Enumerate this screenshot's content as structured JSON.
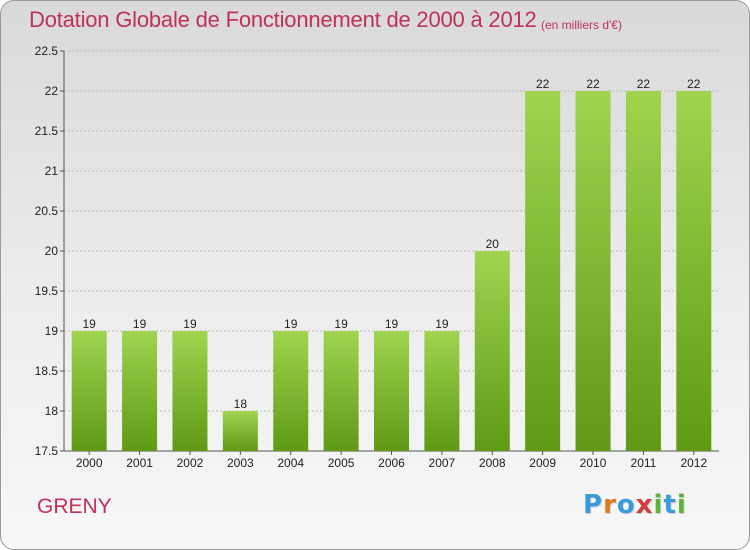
{
  "header": {
    "title": "Dotation Globale de Fonctionnement de 2000 à 2012",
    "subtitle": "(en milliers d'€)"
  },
  "footer": {
    "commune": "GRENY",
    "logo": "Proxiti",
    "logo_colors": [
      "#3a9ad9",
      "#e07a1f",
      "#3a9ad9",
      "#d63a3a",
      "#5bb33a",
      "#3a9ad9",
      "#5bb33a"
    ]
  },
  "colors": {
    "title": "#c0305a",
    "bar_top": "#9fd44f",
    "bar_bottom": "#5e9a14",
    "grid": "#bdbdbd"
  },
  "chart_data": {
    "type": "bar",
    "title": "Dotation Globale de Fonctionnement de 2000 à 2012",
    "subtitle": "(en milliers d'€)",
    "categories": [
      "2000",
      "2001",
      "2002",
      "2003",
      "2004",
      "2005",
      "2006",
      "2007",
      "2008",
      "2009",
      "2010",
      "2011",
      "2012"
    ],
    "values": [
      19,
      19,
      19,
      18,
      19,
      19,
      19,
      19,
      20,
      22,
      22,
      22,
      22
    ],
    "data_labels": [
      "19",
      "19",
      "19",
      "18",
      "19",
      "19",
      "19",
      "19",
      "20",
      "22",
      "22",
      "22",
      "22"
    ],
    "ylim": [
      17.5,
      22.5
    ],
    "yticks": [
      17.5,
      18,
      18.5,
      19,
      19.5,
      20,
      20.5,
      21,
      21.5,
      22,
      22.5
    ],
    "ytick_labels": [
      "17.5",
      "18",
      "18.5",
      "19",
      "19.5",
      "20",
      "20.5",
      "21",
      "21.5",
      "22",
      "22.5"
    ],
    "grid": true,
    "legend": "none"
  }
}
